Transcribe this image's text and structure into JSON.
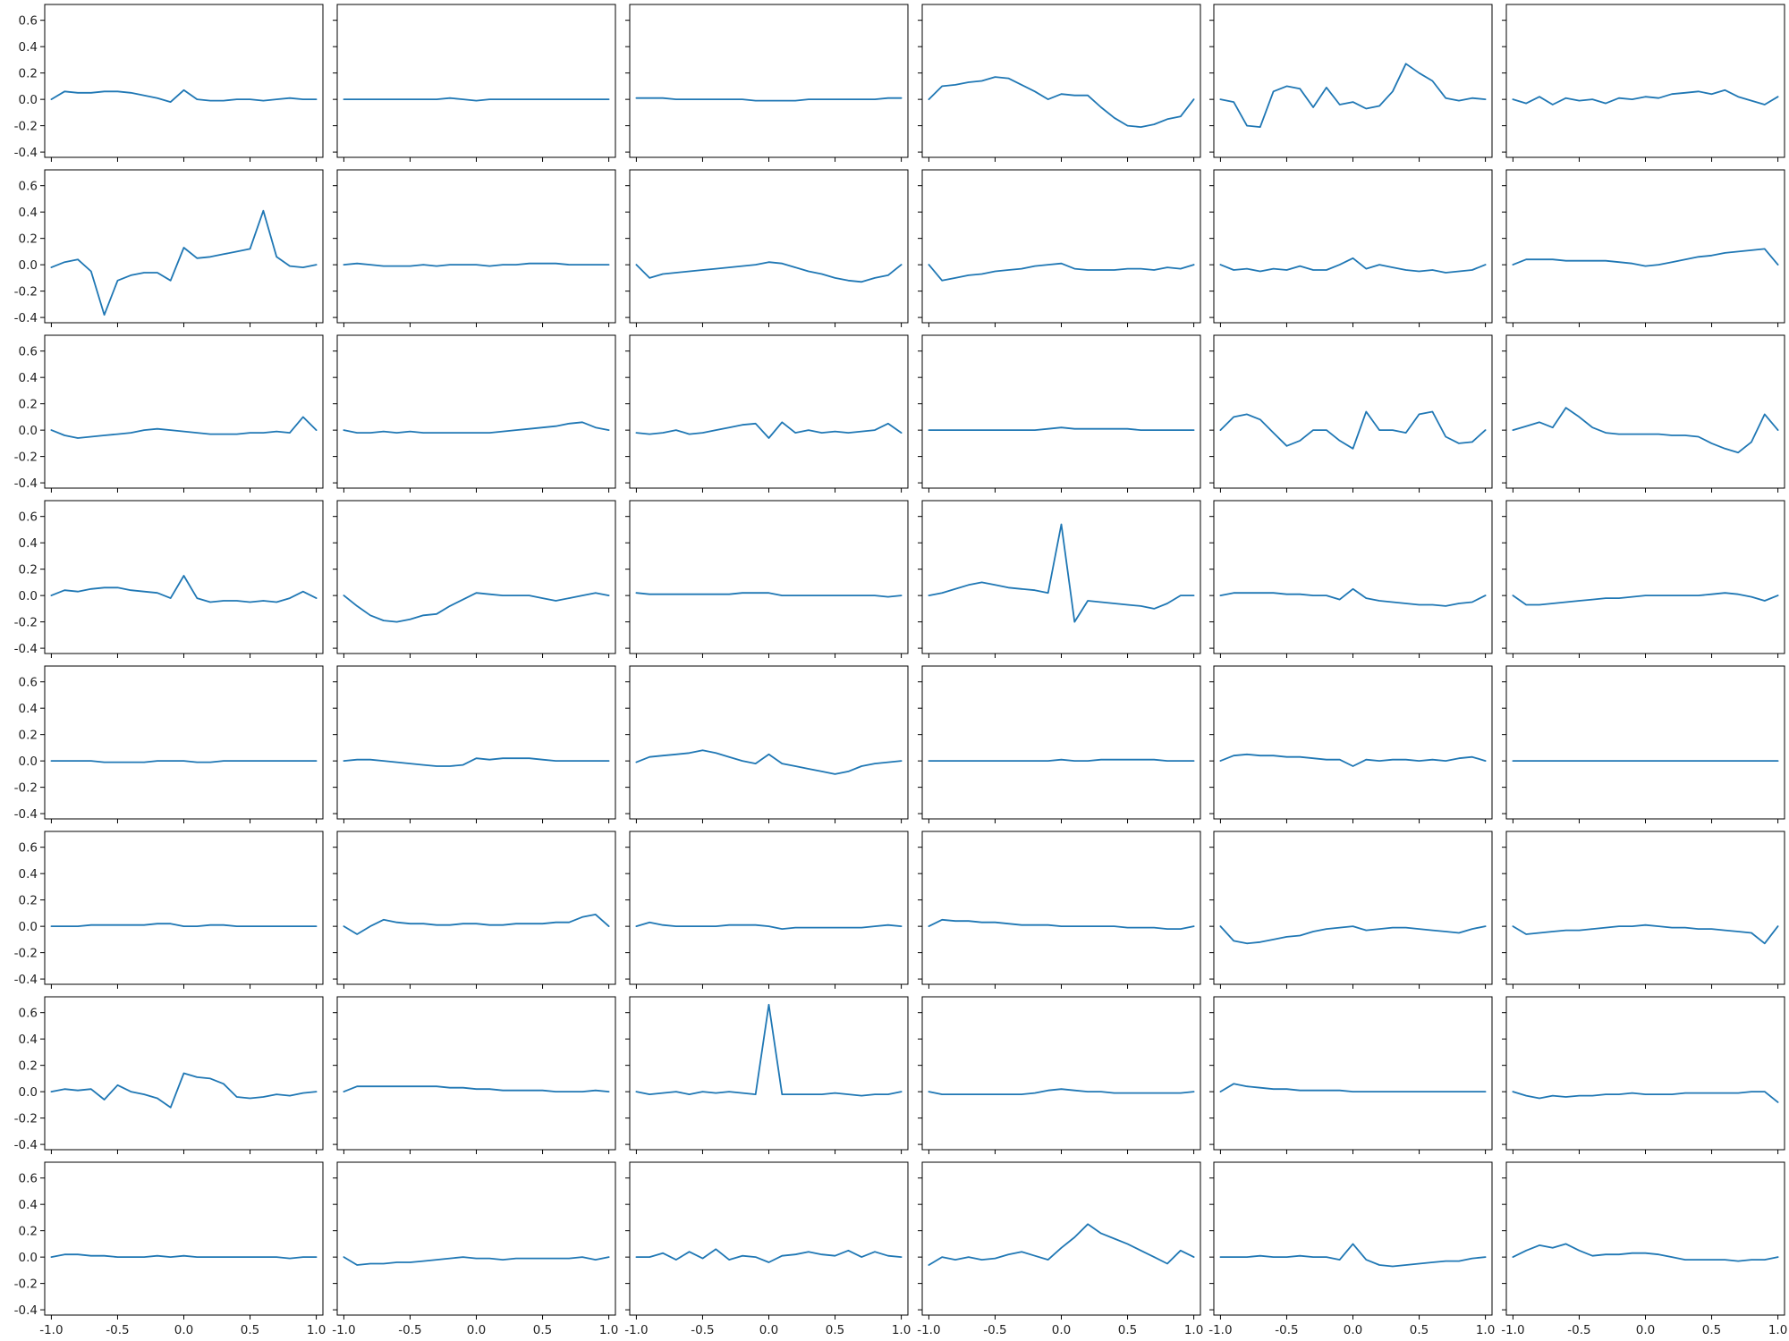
{
  "chart_data": {
    "type": "line",
    "layout": {
      "rows": 8,
      "cols": 6,
      "sharex": true,
      "sharey": true
    },
    "xlim": [
      -1.05,
      1.05
    ],
    "ylim": [
      -0.44,
      0.72
    ],
    "xticks": [
      -1.0,
      -0.5,
      0.0,
      0.5,
      1.0
    ],
    "xtick_labels": [
      "-1.0",
      "-0.5",
      "0.0",
      "0.5",
      "1.0"
    ],
    "yticks": [
      -0.4,
      -0.2,
      0.0,
      0.2,
      0.4,
      0.6
    ],
    "ytick_labels": [
      "-0.4",
      "-0.2",
      "0.0",
      "0.2",
      "0.4",
      "0.6"
    ],
    "line_color": "#1f77b4",
    "x": [
      -1.0,
      -0.9,
      -0.8,
      -0.7,
      -0.6,
      -0.5,
      -0.4,
      -0.3,
      -0.2,
      -0.1,
      0.0,
      0.1,
      0.2,
      0.3,
      0.4,
      0.5,
      0.6,
      0.7,
      0.8,
      0.9,
      1.0
    ],
    "panels": [
      {
        "y": [
          0.0,
          0.06,
          0.05,
          0.05,
          0.06,
          0.06,
          0.05,
          0.03,
          0.01,
          -0.02,
          0.07,
          0.0,
          -0.01,
          -0.01,
          0.0,
          0.0,
          -0.01,
          0.0,
          0.01,
          0.0,
          0.0
        ]
      },
      {
        "y": [
          0.0,
          0.0,
          0.0,
          0.0,
          0.0,
          0.0,
          0.0,
          0.0,
          0.01,
          0.0,
          -0.01,
          0.0,
          0.0,
          0.0,
          0.0,
          0.0,
          0.0,
          0.0,
          0.0,
          0.0,
          0.0
        ]
      },
      {
        "y": [
          0.01,
          0.01,
          0.01,
          0.0,
          0.0,
          0.0,
          0.0,
          0.0,
          0.0,
          -0.01,
          -0.01,
          -0.01,
          -0.01,
          0.0,
          0.0,
          0.0,
          0.0,
          0.0,
          0.0,
          0.01,
          0.01
        ]
      },
      {
        "y": [
          0.0,
          0.1,
          0.11,
          0.13,
          0.14,
          0.17,
          0.16,
          0.11,
          0.06,
          0.0,
          0.04,
          0.03,
          0.03,
          -0.06,
          -0.14,
          -0.2,
          -0.21,
          -0.19,
          -0.15,
          -0.13,
          0.0
        ]
      },
      {
        "y": [
          0.0,
          -0.02,
          -0.2,
          -0.21,
          0.06,
          0.1,
          0.08,
          -0.06,
          0.09,
          -0.04,
          -0.02,
          -0.07,
          -0.05,
          0.06,
          0.27,
          0.2,
          0.14,
          0.01,
          -0.01,
          0.01,
          0.0
        ]
      },
      {
        "y": [
          0.0,
          -0.03,
          0.02,
          -0.04,
          0.01,
          -0.01,
          0.0,
          -0.03,
          0.01,
          0.0,
          0.02,
          0.01,
          0.04,
          0.05,
          0.06,
          0.04,
          0.07,
          0.02,
          -0.01,
          -0.04,
          0.02
        ]
      },
      {
        "y": [
          -0.02,
          0.02,
          0.04,
          -0.05,
          -0.38,
          -0.12,
          -0.08,
          -0.06,
          -0.06,
          -0.12,
          0.13,
          0.05,
          0.06,
          0.08,
          0.1,
          0.12,
          0.41,
          0.06,
          -0.01,
          -0.02,
          0.0
        ]
      },
      {
        "y": [
          0.0,
          0.01,
          0.0,
          -0.01,
          -0.01,
          -0.01,
          0.0,
          -0.01,
          0.0,
          0.0,
          0.0,
          -0.01,
          0.0,
          0.0,
          0.01,
          0.01,
          0.01,
          0.0,
          0.0,
          0.0,
          0.0
        ]
      },
      {
        "y": [
          0.0,
          -0.1,
          -0.07,
          -0.06,
          -0.05,
          -0.04,
          -0.03,
          -0.02,
          -0.01,
          0.0,
          0.02,
          0.01,
          -0.02,
          -0.05,
          -0.07,
          -0.1,
          -0.12,
          -0.13,
          -0.1,
          -0.08,
          0.0
        ]
      },
      {
        "y": [
          0.0,
          -0.12,
          -0.1,
          -0.08,
          -0.07,
          -0.05,
          -0.04,
          -0.03,
          -0.01,
          0.0,
          0.01,
          -0.03,
          -0.04,
          -0.04,
          -0.04,
          -0.03,
          -0.03,
          -0.04,
          -0.02,
          -0.03,
          0.0
        ]
      },
      {
        "y": [
          0.0,
          -0.04,
          -0.03,
          -0.05,
          -0.03,
          -0.04,
          -0.01,
          -0.04,
          -0.04,
          0.0,
          0.05,
          -0.03,
          0.0,
          -0.02,
          -0.04,
          -0.05,
          -0.04,
          -0.06,
          -0.05,
          -0.04,
          0.0
        ]
      },
      {
        "y": [
          0.0,
          0.04,
          0.04,
          0.04,
          0.03,
          0.03,
          0.03,
          0.03,
          0.02,
          0.01,
          -0.01,
          0.0,
          0.02,
          0.04,
          0.06,
          0.07,
          0.09,
          0.1,
          0.11,
          0.12,
          0.0
        ]
      },
      {
        "y": [
          0.0,
          -0.04,
          -0.06,
          -0.05,
          -0.04,
          -0.03,
          -0.02,
          0.0,
          0.01,
          0.0,
          -0.01,
          -0.02,
          -0.03,
          -0.03,
          -0.03,
          -0.02,
          -0.02,
          -0.01,
          -0.02,
          0.1,
          0.0
        ]
      },
      {
        "y": [
          0.0,
          -0.02,
          -0.02,
          -0.01,
          -0.02,
          -0.01,
          -0.02,
          -0.02,
          -0.02,
          -0.02,
          -0.02,
          -0.02,
          -0.01,
          0.0,
          0.01,
          0.02,
          0.03,
          0.05,
          0.06,
          0.02,
          0.0
        ]
      },
      {
        "y": [
          -0.02,
          -0.03,
          -0.02,
          0.0,
          -0.03,
          -0.02,
          0.0,
          0.02,
          0.04,
          0.05,
          -0.06,
          0.06,
          -0.02,
          0.0,
          -0.02,
          -0.01,
          -0.02,
          -0.01,
          0.0,
          0.05,
          -0.02
        ]
      },
      {
        "y": [
          0.0,
          0.0,
          0.0,
          0.0,
          0.0,
          0.0,
          0.0,
          0.0,
          0.0,
          0.01,
          0.02,
          0.01,
          0.01,
          0.01,
          0.01,
          0.01,
          0.0,
          0.0,
          0.0,
          0.0,
          0.0
        ]
      },
      {
        "y": [
          0.0,
          0.1,
          0.12,
          0.08,
          -0.02,
          -0.12,
          -0.08,
          0.0,
          0.0,
          -0.08,
          -0.14,
          0.14,
          0.0,
          0.0,
          -0.02,
          0.12,
          0.14,
          -0.05,
          -0.1,
          -0.09,
          0.0
        ]
      },
      {
        "y": [
          0.0,
          0.03,
          0.06,
          0.02,
          0.17,
          0.1,
          0.02,
          -0.02,
          -0.03,
          -0.03,
          -0.03,
          -0.03,
          -0.04,
          -0.04,
          -0.05,
          -0.1,
          -0.14,
          -0.17,
          -0.09,
          0.12,
          0.0
        ]
      },
      {
        "y": [
          0.0,
          0.04,
          0.03,
          0.05,
          0.06,
          0.06,
          0.04,
          0.03,
          0.02,
          -0.02,
          0.15,
          -0.02,
          -0.05,
          -0.04,
          -0.04,
          -0.05,
          -0.04,
          -0.05,
          -0.02,
          0.03,
          -0.02
        ]
      },
      {
        "y": [
          0.0,
          -0.08,
          -0.15,
          -0.19,
          -0.2,
          -0.18,
          -0.15,
          -0.14,
          -0.08,
          -0.03,
          0.02,
          0.01,
          0.0,
          0.0,
          0.0,
          -0.02,
          -0.04,
          -0.02,
          0.0,
          0.02,
          0.0
        ]
      },
      {
        "y": [
          0.02,
          0.01,
          0.01,
          0.01,
          0.01,
          0.01,
          0.01,
          0.01,
          0.02,
          0.02,
          0.02,
          0.0,
          0.0,
          0.0,
          0.0,
          0.0,
          0.0,
          0.0,
          0.0,
          -0.01,
          0.0
        ]
      },
      {
        "y": [
          0.0,
          0.02,
          0.05,
          0.08,
          0.1,
          0.08,
          0.06,
          0.05,
          0.04,
          0.02,
          0.54,
          -0.2,
          -0.04,
          -0.05,
          -0.06,
          -0.07,
          -0.08,
          -0.1,
          -0.06,
          0.0,
          0.0
        ]
      },
      {
        "y": [
          0.0,
          0.02,
          0.02,
          0.02,
          0.02,
          0.01,
          0.01,
          0.0,
          0.0,
          -0.03,
          0.05,
          -0.02,
          -0.04,
          -0.05,
          -0.06,
          -0.07,
          -0.07,
          -0.08,
          -0.06,
          -0.05,
          0.0
        ]
      },
      {
        "y": [
          0.0,
          -0.07,
          -0.07,
          -0.06,
          -0.05,
          -0.04,
          -0.03,
          -0.02,
          -0.02,
          -0.01,
          0.0,
          0.0,
          0.0,
          0.0,
          0.0,
          0.01,
          0.02,
          0.01,
          -0.01,
          -0.04,
          0.0
        ]
      },
      {
        "y": [
          0.0,
          0.0,
          0.0,
          0.0,
          -0.01,
          -0.01,
          -0.01,
          -0.01,
          0.0,
          0.0,
          0.0,
          -0.01,
          -0.01,
          0.0,
          0.0,
          0.0,
          0.0,
          0.0,
          0.0,
          0.0,
          0.0
        ]
      },
      {
        "y": [
          0.0,
          0.01,
          0.01,
          0.0,
          -0.01,
          -0.02,
          -0.03,
          -0.04,
          -0.04,
          -0.03,
          0.02,
          0.01,
          0.02,
          0.02,
          0.02,
          0.01,
          0.0,
          0.0,
          0.0,
          0.0,
          0.0
        ]
      },
      {
        "y": [
          -0.01,
          0.03,
          0.04,
          0.05,
          0.06,
          0.08,
          0.06,
          0.03,
          0.0,
          -0.02,
          0.05,
          -0.02,
          -0.04,
          -0.06,
          -0.08,
          -0.1,
          -0.08,
          -0.04,
          -0.02,
          -0.01,
          0.0
        ]
      },
      {
        "y": [
          0.0,
          0.0,
          0.0,
          0.0,
          0.0,
          0.0,
          0.0,
          0.0,
          0.0,
          0.0,
          0.01,
          0.0,
          0.0,
          0.01,
          0.01,
          0.01,
          0.01,
          0.01,
          0.0,
          0.0,
          0.0
        ]
      },
      {
        "y": [
          0.0,
          0.04,
          0.05,
          0.04,
          0.04,
          0.03,
          0.03,
          0.02,
          0.01,
          0.01,
          -0.04,
          0.01,
          0.0,
          0.01,
          0.01,
          0.0,
          0.01,
          0.0,
          0.02,
          0.03,
          0.0
        ]
      },
      {
        "y": [
          0.0,
          0.0,
          0.0,
          0.0,
          0.0,
          0.0,
          0.0,
          0.0,
          0.0,
          0.0,
          0.0,
          0.0,
          0.0,
          0.0,
          0.0,
          0.0,
          0.0,
          0.0,
          0.0,
          0.0,
          0.0
        ]
      },
      {
        "y": [
          0.0,
          0.0,
          0.0,
          0.01,
          0.01,
          0.01,
          0.01,
          0.01,
          0.02,
          0.02,
          0.0,
          0.0,
          0.01,
          0.01,
          0.0,
          0.0,
          0.0,
          0.0,
          0.0,
          0.0,
          0.0
        ]
      },
      {
        "y": [
          0.0,
          -0.06,
          0.0,
          0.05,
          0.03,
          0.02,
          0.02,
          0.01,
          0.01,
          0.02,
          0.02,
          0.01,
          0.01,
          0.02,
          0.02,
          0.02,
          0.03,
          0.03,
          0.07,
          0.09,
          0.0
        ]
      },
      {
        "y": [
          0.0,
          0.03,
          0.01,
          0.0,
          0.0,
          0.0,
          0.0,
          0.01,
          0.01,
          0.01,
          0.0,
          -0.02,
          -0.01,
          -0.01,
          -0.01,
          -0.01,
          -0.01,
          -0.01,
          0.0,
          0.01,
          0.0
        ]
      },
      {
        "y": [
          0.0,
          0.05,
          0.04,
          0.04,
          0.03,
          0.03,
          0.02,
          0.01,
          0.01,
          0.01,
          0.0,
          0.0,
          0.0,
          0.0,
          0.0,
          -0.01,
          -0.01,
          -0.01,
          -0.02,
          -0.02,
          0.0
        ]
      },
      {
        "y": [
          0.0,
          -0.11,
          -0.13,
          -0.12,
          -0.1,
          -0.08,
          -0.07,
          -0.04,
          -0.02,
          -0.01,
          0.0,
          -0.03,
          -0.02,
          -0.01,
          -0.01,
          -0.02,
          -0.03,
          -0.04,
          -0.05,
          -0.02,
          0.0
        ]
      },
      {
        "y": [
          0.0,
          -0.06,
          -0.05,
          -0.04,
          -0.03,
          -0.03,
          -0.02,
          -0.01,
          0.0,
          0.0,
          0.01,
          0.0,
          -0.01,
          -0.01,
          -0.02,
          -0.02,
          -0.03,
          -0.04,
          -0.05,
          -0.13,
          0.0
        ]
      },
      {
        "y": [
          0.0,
          0.02,
          0.01,
          0.02,
          -0.06,
          0.05,
          0.0,
          -0.02,
          -0.05,
          -0.12,
          0.14,
          0.11,
          0.1,
          0.06,
          -0.04,
          -0.05,
          -0.04,
          -0.02,
          -0.03,
          -0.01,
          0.0
        ]
      },
      {
        "y": [
          0.0,
          0.04,
          0.04,
          0.04,
          0.04,
          0.04,
          0.04,
          0.04,
          0.03,
          0.03,
          0.02,
          0.02,
          0.01,
          0.01,
          0.01,
          0.01,
          0.0,
          0.0,
          0.0,
          0.01,
          0.0
        ]
      },
      {
        "y": [
          0.0,
          -0.02,
          -0.01,
          0.0,
          -0.02,
          0.0,
          -0.01,
          0.0,
          -0.01,
          -0.02,
          0.66,
          -0.02,
          -0.02,
          -0.02,
          -0.02,
          -0.01,
          -0.02,
          -0.03,
          -0.02,
          -0.02,
          0.0
        ]
      },
      {
        "y": [
          0.0,
          -0.02,
          -0.02,
          -0.02,
          -0.02,
          -0.02,
          -0.02,
          -0.02,
          -0.01,
          0.01,
          0.02,
          0.01,
          0.0,
          0.0,
          -0.01,
          -0.01,
          -0.01,
          -0.01,
          -0.01,
          -0.01,
          0.0
        ]
      },
      {
        "y": [
          0.0,
          0.06,
          0.04,
          0.03,
          0.02,
          0.02,
          0.01,
          0.01,
          0.01,
          0.01,
          0.0,
          0.0,
          0.0,
          0.0,
          0.0,
          0.0,
          0.0,
          0.0,
          0.0,
          0.0,
          0.0
        ]
      },
      {
        "y": [
          0.0,
          -0.03,
          -0.05,
          -0.03,
          -0.04,
          -0.03,
          -0.03,
          -0.02,
          -0.02,
          -0.01,
          -0.02,
          -0.02,
          -0.02,
          -0.01,
          -0.01,
          -0.01,
          -0.01,
          -0.01,
          0.0,
          0.0,
          -0.08
        ]
      },
      {
        "y": [
          0.0,
          0.02,
          0.02,
          0.01,
          0.01,
          0.0,
          0.0,
          0.0,
          0.01,
          0.0,
          0.01,
          0.0,
          0.0,
          0.0,
          0.0,
          0.0,
          0.0,
          0.0,
          -0.01,
          0.0,
          0.0
        ]
      },
      {
        "y": [
          0.0,
          -0.06,
          -0.05,
          -0.05,
          -0.04,
          -0.04,
          -0.03,
          -0.02,
          -0.01,
          0.0,
          -0.01,
          -0.01,
          -0.02,
          -0.01,
          -0.01,
          -0.01,
          -0.01,
          -0.01,
          0.0,
          -0.02,
          0.0
        ]
      },
      {
        "y": [
          0.0,
          0.0,
          0.03,
          -0.02,
          0.04,
          -0.01,
          0.06,
          -0.02,
          0.01,
          0.0,
          -0.04,
          0.01,
          0.02,
          0.04,
          0.02,
          0.01,
          0.05,
          0.0,
          0.04,
          0.01,
          0.0
        ]
      },
      {
        "y": [
          -0.06,
          0.0,
          -0.02,
          0.0,
          -0.02,
          -0.01,
          0.02,
          0.04,
          0.01,
          -0.02,
          0.07,
          0.15,
          0.25,
          0.18,
          0.14,
          0.1,
          0.05,
          0.0,
          -0.05,
          0.05,
          0.0
        ]
      },
      {
        "y": [
          0.0,
          0.0,
          0.0,
          0.01,
          0.0,
          0.0,
          0.01,
          0.0,
          0.0,
          -0.02,
          0.1,
          -0.02,
          -0.06,
          -0.07,
          -0.06,
          -0.05,
          -0.04,
          -0.03,
          -0.03,
          -0.01,
          0.0
        ]
      },
      {
        "y": [
          0.0,
          0.05,
          0.09,
          0.07,
          0.1,
          0.05,
          0.01,
          0.02,
          0.02,
          0.03,
          0.03,
          0.02,
          0.0,
          -0.02,
          -0.02,
          -0.02,
          -0.02,
          -0.03,
          -0.02,
          -0.02,
          0.0
        ]
      }
    ]
  }
}
